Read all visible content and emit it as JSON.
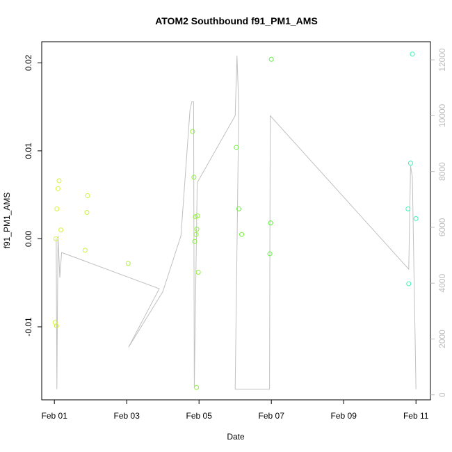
{
  "chart_data": {
    "type": "scatter",
    "title": "ATOM2 Southbound f91_PM1_AMS",
    "xlabel": "Date",
    "ylabel": "f91_PM1_AMS",
    "y2label": "",
    "x_unit": "days from Feb 01",
    "xlim": [
      -0.35,
      10.4
    ],
    "ylim": [
      -0.0183,
      0.0224
    ],
    "y2lim": [
      -180,
      12650
    ],
    "x_ticks": [
      {
        "value": 0,
        "label": "Feb 01"
      },
      {
        "value": 2,
        "label": "Feb 03"
      },
      {
        "value": 4,
        "label": "Feb 05"
      },
      {
        "value": 6,
        "label": "Feb 07"
      },
      {
        "value": 8,
        "label": "Feb 09"
      },
      {
        "value": 10,
        "label": "Feb 11"
      }
    ],
    "y_ticks": [
      {
        "value": -0.01,
        "label": "-0.01"
      },
      {
        "value": 0.0,
        "label": "0.00"
      },
      {
        "value": 0.01,
        "label": "0.01"
      },
      {
        "value": 0.02,
        "label": "0.02"
      }
    ],
    "y2_ticks": [
      {
        "value": 0,
        "label": "0"
      },
      {
        "value": 2000,
        "label": "2000"
      },
      {
        "value": 4000,
        "label": "4000"
      },
      {
        "value": 6000,
        "label": "6000"
      },
      {
        "value": 8000,
        "label": "8000"
      },
      {
        "value": 10000,
        "label": "10000"
      },
      {
        "value": 12000,
        "label": "12000"
      }
    ],
    "points": [
      {
        "x": 0.02,
        "y": -0.0095,
        "color": "#d7f23a"
      },
      {
        "x": 0.06,
        "y": -0.0099,
        "color": "#d7f23a"
      },
      {
        "x": 0.04,
        "y": 0.0,
        "color": "#d7f23a"
      },
      {
        "x": 0.07,
        "y": 0.0034,
        "color": "#d7f23a"
      },
      {
        "x": 0.1,
        "y": 0.0057,
        "color": "#d7f23a"
      },
      {
        "x": 0.13,
        "y": 0.0066,
        "color": "#d7f23a"
      },
      {
        "x": 0.18,
        "y": 0.001,
        "color": "#d7f23a"
      },
      {
        "x": 0.85,
        "y": -0.0013,
        "color": "#c6f23a"
      },
      {
        "x": 0.9,
        "y": 0.003,
        "color": "#c6f23a"
      },
      {
        "x": 0.92,
        "y": 0.0049,
        "color": "#c6f23a"
      },
      {
        "x": 2.04,
        "y": -0.0028,
        "color": "#a8f23a"
      },
      {
        "x": 3.82,
        "y": 0.0122,
        "color": "#8ef23a"
      },
      {
        "x": 3.86,
        "y": 0.007,
        "color": "#8ef23a"
      },
      {
        "x": 3.88,
        "y": -0.0003,
        "color": "#8ef23a"
      },
      {
        "x": 3.9,
        "y": 0.0025,
        "color": "#8ef23a"
      },
      {
        "x": 3.92,
        "y": 0.0005,
        "color": "#8ef23a"
      },
      {
        "x": 3.94,
        "y": 0.0011,
        "color": "#8ef23a"
      },
      {
        "x": 3.96,
        "y": 0.0026,
        "color": "#8ef23a"
      },
      {
        "x": 3.98,
        "y": -0.0038,
        "color": "#8ef23a"
      },
      {
        "x": 3.93,
        "y": -0.0169,
        "color": "#8ef23a"
      },
      {
        "x": 5.03,
        "y": 0.0104,
        "color": "#6ef23a"
      },
      {
        "x": 5.1,
        "y": 0.0034,
        "color": "#6ef23a"
      },
      {
        "x": 5.18,
        "y": 0.0005,
        "color": "#6ef23a"
      },
      {
        "x": 5.96,
        "y": -0.0017,
        "color": "#5cf23a"
      },
      {
        "x": 5.98,
        "y": 0.0018,
        "color": "#5cf23a"
      },
      {
        "x": 6.0,
        "y": 0.0204,
        "color": "#5cf23a"
      },
      {
        "x": 9.78,
        "y": 0.0034,
        "color": "#3af2b4"
      },
      {
        "x": 9.8,
        "y": -0.0051,
        "color": "#3af2b4"
      },
      {
        "x": 9.85,
        "y": 0.0086,
        "color": "#3af2b4"
      },
      {
        "x": 9.9,
        "y": 0.021,
        "color": "#3af2b4"
      },
      {
        "x": 10.0,
        "y": 0.0023,
        "color": "#3af2b4"
      }
    ],
    "line_y2": [
      {
        "x": 0.05,
        "y": 5600
      },
      {
        "x": 0.07,
        "y": 200
      },
      {
        "x": 0.1,
        "y": 5700
      },
      {
        "x": 0.15,
        "y": 4200
      },
      {
        "x": 0.2,
        "y": 5100
      },
      {
        "x": 2.9,
        "y": 3800
      },
      {
        "x": 2.05,
        "y": 1700
      },
      {
        "x": 3.0,
        "y": 3700
      },
      {
        "x": 3.5,
        "y": 5700
      },
      {
        "x": 3.75,
        "y": 10200
      },
      {
        "x": 3.8,
        "y": 10500
      },
      {
        "x": 3.85,
        "y": 10500
      },
      {
        "x": 3.87,
        "y": 250
      },
      {
        "x": 3.95,
        "y": 7600
      },
      {
        "x": 5.0,
        "y": 10000
      },
      {
        "x": 5.05,
        "y": 12150
      },
      {
        "x": 5.1,
        "y": 10300
      },
      {
        "x": 5.0,
        "y": 200
      },
      {
        "x": 5.95,
        "y": 200
      },
      {
        "x": 5.97,
        "y": 10000
      },
      {
        "x": 9.8,
        "y": 4500
      },
      {
        "x": 9.85,
        "y": 8200
      },
      {
        "x": 9.9,
        "y": 7800
      },
      {
        "x": 10.0,
        "y": 200
      }
    ]
  }
}
